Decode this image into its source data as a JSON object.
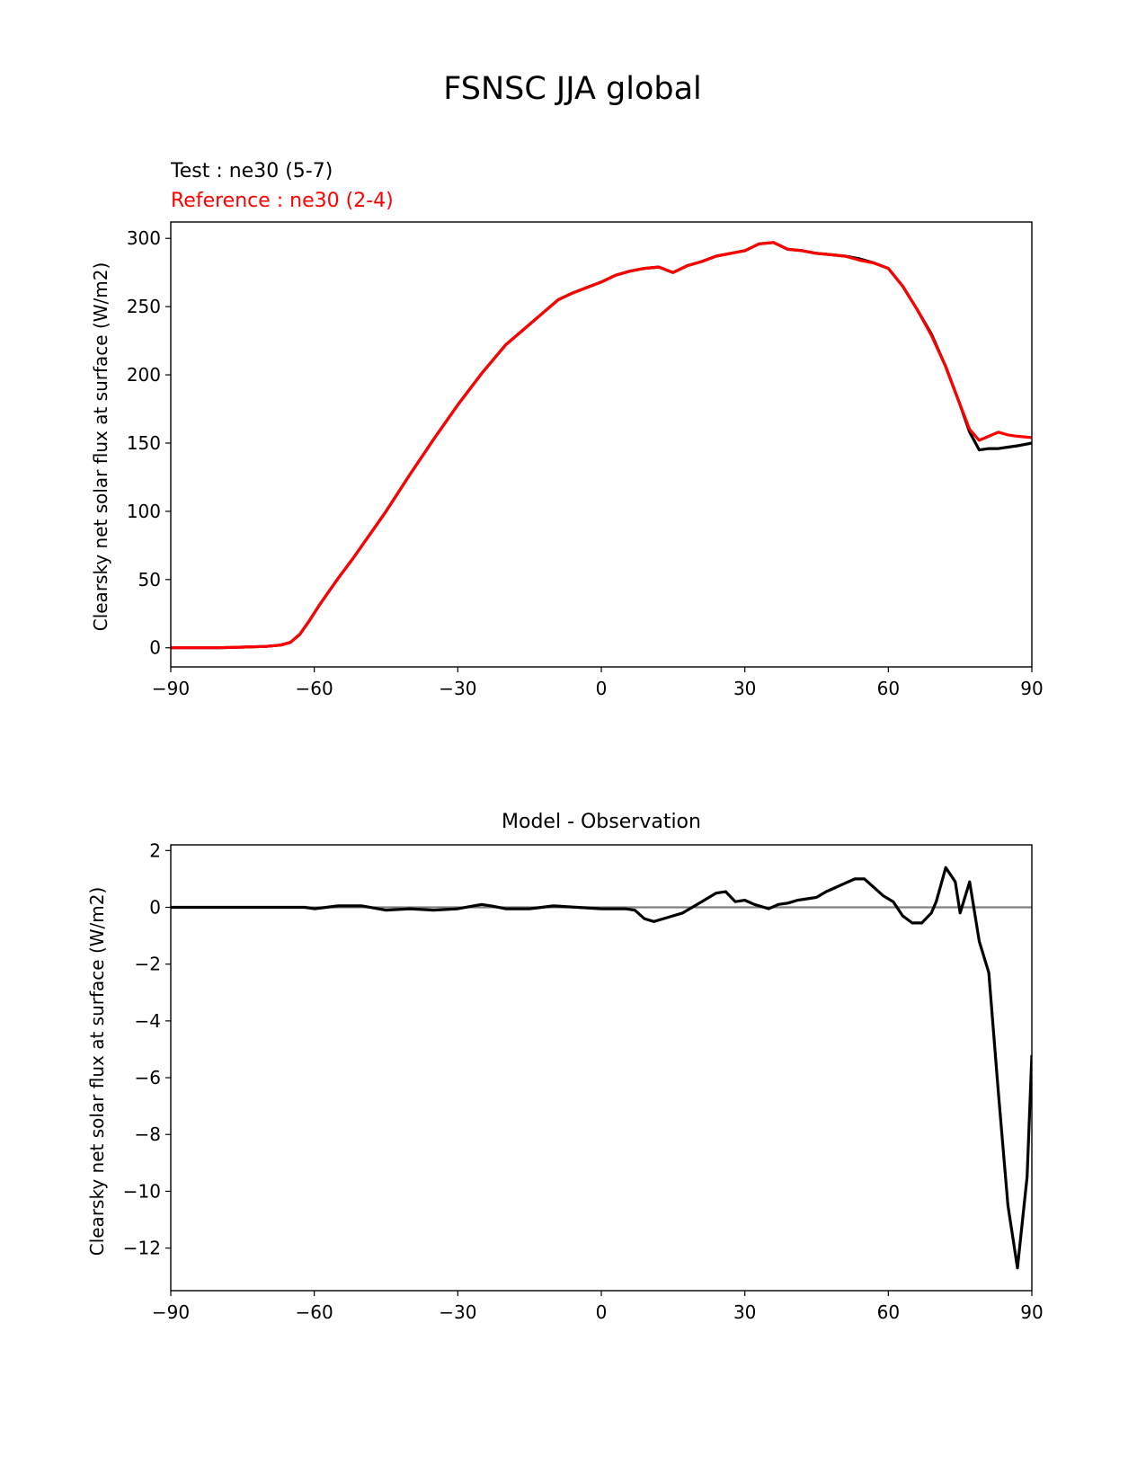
{
  "figure": {
    "title": "FSNSC JJA global"
  },
  "chart_data": [
    {
      "type": "line",
      "title_left": "Test : ne30 (5-7)",
      "title_left_color": "#000000",
      "title_left2": "Reference : ne30 (2-4)",
      "title_left2_color": "#ff0000",
      "xlabel": "",
      "ylabel": "Clearsky net solar flux at surface (W/m2)",
      "xlim": [
        -90,
        90
      ],
      "ylim": [
        -14,
        312
      ],
      "xticks": [
        -90,
        -60,
        -30,
        0,
        30,
        60,
        90
      ],
      "xtick_labels": [
        "−90",
        "−60",
        "−30",
        "0",
        "30",
        "60",
        "90"
      ],
      "yticks": [
        0,
        50,
        100,
        150,
        200,
        250,
        300
      ],
      "ytick_labels": [
        "0",
        "50",
        "100",
        "150",
        "200",
        "250",
        "300"
      ],
      "grid": false,
      "series": [
        {
          "color": "#000000",
          "x": [
            -90,
            -85,
            -80,
            -75,
            -70,
            -67,
            -65,
            -63,
            -61,
            -59,
            -57,
            -55,
            -52,
            -49,
            -45,
            -40,
            -35,
            -30,
            -25,
            -20,
            -15,
            -12,
            -9,
            -6,
            -3,
            0,
            3,
            6,
            9,
            12,
            15,
            18,
            21,
            24,
            27,
            30,
            33,
            36,
            39,
            42,
            45,
            48,
            51,
            54,
            57,
            60,
            63,
            66,
            69,
            72,
            75,
            77,
            79,
            81,
            83,
            85,
            87,
            90
          ],
          "y": [
            0,
            0,
            0,
            0.5,
            1,
            2,
            4,
            10,
            20,
            31,
            41,
            51,
            65,
            80,
            100,
            127,
            153,
            178,
            201,
            222,
            237,
            246,
            255,
            260,
            264,
            268,
            273,
            276,
            278,
            279,
            275,
            280,
            283,
            287,
            289,
            291,
            296,
            297,
            292,
            291,
            289,
            288,
            287,
            285,
            282,
            278,
            265,
            248,
            230,
            206,
            178,
            158,
            145,
            146,
            146,
            147,
            148,
            150
          ],
          "name": ""
        },
        {
          "color": "#ff0000",
          "x": [
            -90,
            -85,
            -80,
            -75,
            -70,
            -67,
            -65,
            -63,
            -61,
            -59,
            -57,
            -55,
            -52,
            -49,
            -45,
            -40,
            -35,
            -30,
            -25,
            -20,
            -15,
            -12,
            -9,
            -6,
            -3,
            0,
            3,
            6,
            9,
            12,
            15,
            18,
            21,
            24,
            27,
            30,
            33,
            36,
            39,
            42,
            45,
            48,
            51,
            54,
            57,
            60,
            63,
            66,
            69,
            72,
            75,
            77,
            79,
            81,
            83,
            85,
            87,
            90
          ],
          "y": [
            0,
            0,
            0,
            0.5,
            1,
            2,
            4,
            10,
            20,
            31,
            41,
            51,
            65,
            80,
            100,
            127,
            153,
            178,
            201,
            222,
            237,
            246,
            255,
            260,
            264,
            268,
            273,
            276,
            278,
            279,
            275,
            280,
            283,
            287,
            289,
            291,
            296,
            297,
            292,
            291,
            289,
            288,
            287,
            284,
            282,
            278,
            265,
            248,
            229,
            206,
            178,
            160,
            152,
            155,
            158,
            156,
            155,
            154
          ],
          "name": ""
        }
      ]
    },
    {
      "type": "line",
      "title": "Model - Observation",
      "xlabel": "",
      "ylabel": "Clearsky net solar flux at surface (W/m2)",
      "xlim": [
        -90,
        90
      ],
      "ylim": [
        -13.5,
        2.2
      ],
      "xticks": [
        -90,
        -60,
        -30,
        0,
        30,
        60,
        90
      ],
      "xtick_labels": [
        "−90",
        "−60",
        "−30",
        "0",
        "30",
        "60",
        "90"
      ],
      "yticks": [
        2,
        0,
        -2,
        -4,
        -6,
        -8,
        -10,
        -12
      ],
      "ytick_labels": [
        "2",
        "0",
        "−2",
        "−4",
        "−6",
        "−8",
        "−10",
        "−12"
      ],
      "grid": false,
      "zero_line": {
        "y": 0,
        "color": "#808080"
      },
      "series": [
        {
          "color": "#000000",
          "x": [
            -90,
            -80,
            -70,
            -62,
            -60,
            -55,
            -50,
            -45,
            -40,
            -35,
            -30,
            -25,
            -23,
            -20,
            -15,
            -10,
            -5,
            0,
            5,
            7,
            9,
            11,
            13,
            15,
            17,
            19,
            21,
            23,
            24,
            26,
            28,
            30,
            32,
            34,
            35,
            37,
            39,
            41,
            43,
            45,
            47,
            49,
            51,
            53,
            55,
            57,
            59,
            61,
            63,
            65,
            67,
            69,
            70,
            72,
            74,
            75,
            77,
            79,
            81,
            83,
            85,
            87,
            89,
            90
          ],
          "y": [
            0,
            0,
            0,
            0,
            -0.05,
            0.05,
            0.05,
            -0.1,
            -0.05,
            -0.1,
            -0.05,
            0.1,
            0.05,
            -0.05,
            -0.05,
            0.05,
            0,
            -0.05,
            -0.05,
            -0.1,
            -0.4,
            -0.5,
            -0.4,
            -0.3,
            -0.2,
            0,
            0.2,
            0.4,
            0.5,
            0.55,
            0.2,
            0.25,
            0.1,
            0,
            -0.05,
            0.1,
            0.15,
            0.25,
            0.3,
            0.35,
            0.55,
            0.7,
            0.85,
            1.0,
            1.0,
            0.7,
            0.4,
            0.2,
            -0.3,
            -0.55,
            -0.55,
            -0.2,
            0.2,
            1.4,
            0.9,
            -0.2,
            0.9,
            -1.2,
            -2.3,
            -6.5,
            -10.5,
            -12.7,
            -9.5,
            -5.2
          ]
        }
      ]
    }
  ]
}
